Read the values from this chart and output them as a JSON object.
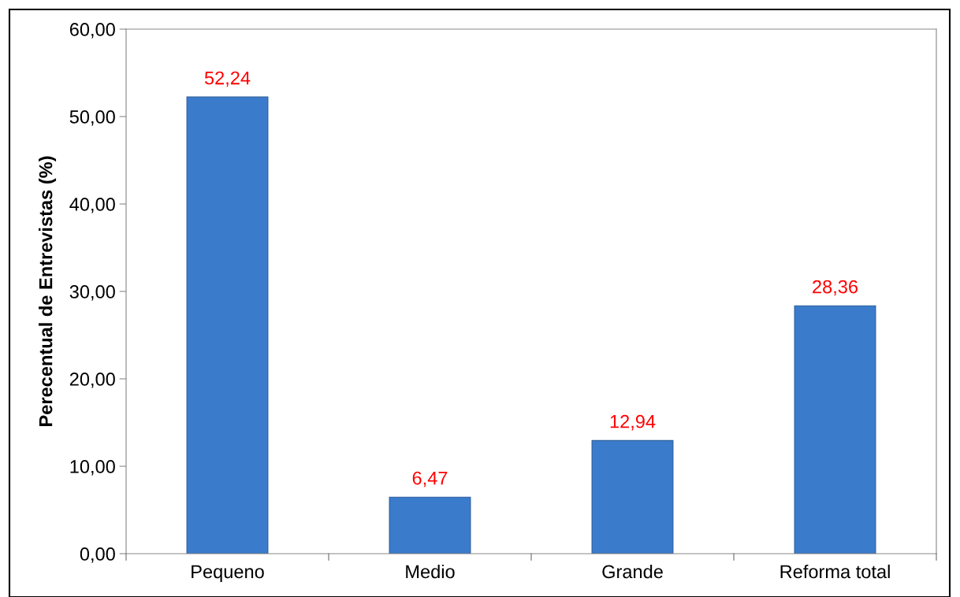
{
  "chart_data": {
    "type": "bar",
    "ylabel": "Perecentual de Entrevistas (%)",
    "categories": [
      "Pequeno",
      "Medio",
      "Grande",
      "Reforma total"
    ],
    "values": [
      52.24,
      6.47,
      12.94,
      28.36
    ],
    "color": "#3a7bcc",
    "value_labels": [
      "52,24",
      "6,47",
      "12,94",
      "28,36"
    ],
    "ylim": [
      0,
      60
    ],
    "yticks": [
      {
        "value": 0,
        "label": "0,00"
      },
      {
        "value": 10,
        "label": "10,00"
      },
      {
        "value": 20,
        "label": "20,00"
      },
      {
        "value": 30,
        "label": "30,00"
      },
      {
        "value": 40,
        "label": "40,00"
      },
      {
        "value": 50,
        "label": "50,00"
      },
      {
        "value": 60,
        "label": "60,00"
      }
    ],
    "grid": false,
    "legend": false
  }
}
